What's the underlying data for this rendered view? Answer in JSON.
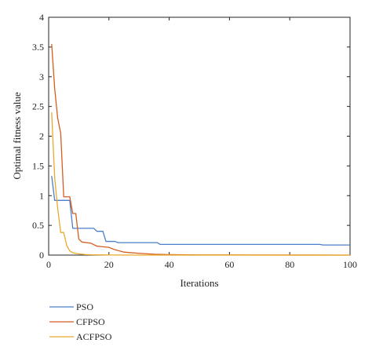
{
  "chart_data": {
    "type": "line",
    "xlabel": "Iterations",
    "ylabel": "Optimal fitness value",
    "xlim": [
      0,
      100
    ],
    "ylim": [
      0,
      4
    ],
    "xticks": [
      0,
      20,
      40,
      60,
      80,
      100
    ],
    "yticks": [
      0,
      0.5,
      1,
      1.5,
      2,
      2.5,
      3,
      3.5,
      4
    ],
    "xtick_labels": [
      "0",
      "20",
      "40",
      "60",
      "80",
      "100"
    ],
    "ytick_labels": [
      "0",
      "0.5",
      "1",
      "1.5",
      "2",
      "2.5",
      "3",
      "3.5",
      "4"
    ],
    "grid": false,
    "legend_position": "below",
    "series": [
      {
        "name": "PSO",
        "color": "#4a7fc9",
        "x": [
          1,
          2,
          3,
          7,
          8,
          15,
          16,
          18,
          19,
          22,
          23,
          36,
          37,
          90,
          91,
          100
        ],
        "y": [
          1.33,
          0.92,
          0.92,
          0.92,
          0.45,
          0.45,
          0.4,
          0.4,
          0.23,
          0.23,
          0.21,
          0.21,
          0.18,
          0.18,
          0.17,
          0.17
        ]
      },
      {
        "name": "CFPSO",
        "color": "#d55e1e",
        "x": [
          1,
          2,
          3,
          4,
          5,
          6,
          7,
          8,
          9,
          10,
          11,
          14,
          16,
          20,
          22,
          25,
          30,
          35,
          40,
          50,
          100
        ],
        "y": [
          3.55,
          2.8,
          2.3,
          2.05,
          0.98,
          0.98,
          0.98,
          0.7,
          0.7,
          0.27,
          0.22,
          0.2,
          0.15,
          0.13,
          0.09,
          0.05,
          0.03,
          0.015,
          0.008,
          0.003,
          0.0
        ]
      },
      {
        "name": "ACFPSO",
        "color": "#e8a92a",
        "x": [
          1,
          2,
          3,
          4,
          5,
          6,
          7,
          8,
          10,
          12,
          15,
          20,
          30,
          100
        ],
        "y": [
          2.4,
          1.3,
          0.78,
          0.38,
          0.38,
          0.16,
          0.07,
          0.04,
          0.02,
          0.01,
          0.005,
          0.002,
          0.0,
          0.0
        ]
      }
    ]
  }
}
